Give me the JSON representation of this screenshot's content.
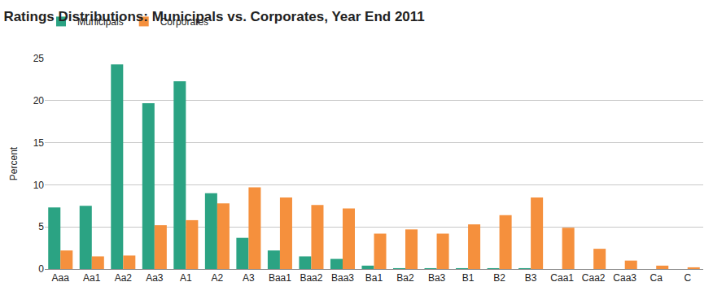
{
  "chart_data": {
    "type": "bar",
    "title": "Ratings Distributions: Municipals vs. Corporates, Year End 2011",
    "y_label": "Percent",
    "categories": [
      "Aaa",
      "Aa1",
      "Aa2",
      "Aa3",
      "A1",
      "A2",
      "A3",
      "Baa1",
      "Baa2",
      "Baa3",
      "Ba1",
      "Ba2",
      "Ba3",
      "B1",
      "B2",
      "B3",
      "Caa1",
      "Caa2",
      "Caa3",
      "Ca",
      "C"
    ],
    "series": [
      {
        "name": "Municipals",
        "color": "#2ba383",
        "values": [
          7.3,
          7.5,
          24.3,
          19.7,
          22.3,
          9.0,
          3.7,
          2.2,
          1.5,
          1.2,
          0.4,
          0.1,
          0.1,
          0.1,
          0.1,
          0.1,
          0,
          0,
          0,
          0,
          0
        ]
      },
      {
        "name": "Corporates",
        "color": "#f5903d",
        "values": [
          2.2,
          1.5,
          1.6,
          5.2,
          5.8,
          7.8,
          9.7,
          8.5,
          7.6,
          7.2,
          4.2,
          4.7,
          4.2,
          5.3,
          6.4,
          8.5,
          4.9,
          2.4,
          1.0,
          0.4,
          0.2
        ]
      }
    ],
    "ylim": [
      0,
      25
    ],
    "yticks": [
      0,
      5,
      10,
      15,
      20,
      25
    ],
    "grid": true,
    "legend": "top-left"
  }
}
